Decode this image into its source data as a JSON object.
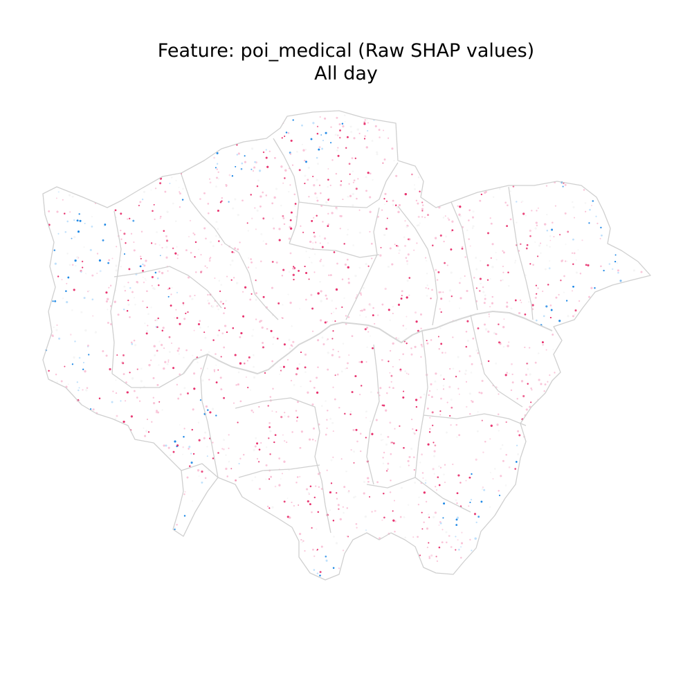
{
  "title": {
    "line1": "Feature: poi_medical (Raw SHAP values)",
    "line2": "All day"
  },
  "map": {
    "type": "point map",
    "region": "Greater London",
    "boundaries": "borough outlines",
    "boundary_color": "#cfcfcf",
    "color_scale": {
      "negative_strong": "#1e88e5",
      "negative_light": "#bfe0fb",
      "neutral": "#f5f5f5",
      "positive_light": "#f9c4d8",
      "positive_strong": "#e8336f"
    },
    "legend": "none",
    "axes": "off"
  }
}
